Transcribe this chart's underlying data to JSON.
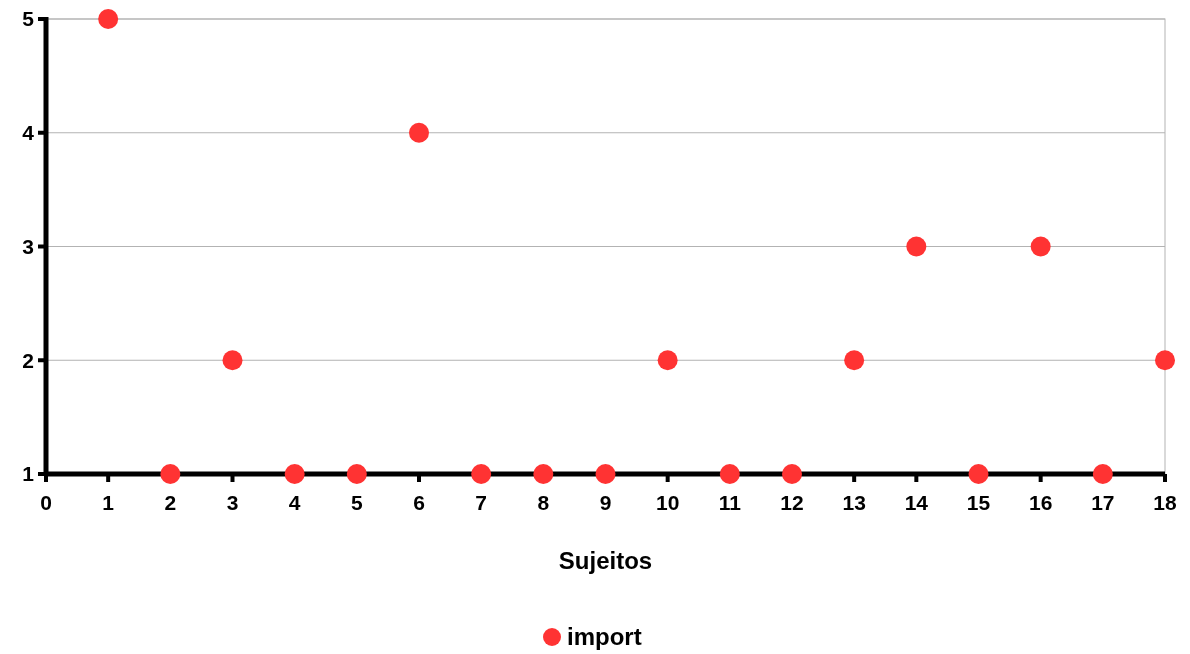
{
  "chart_data": {
    "type": "scatter",
    "xlabel": "Sujeitos",
    "x": [
      1,
      2,
      3,
      4,
      5,
      6,
      7,
      8,
      9,
      10,
      11,
      12,
      13,
      14,
      15,
      16,
      17,
      18
    ],
    "series": [
      {
        "name": "import",
        "color": "#ff3333",
        "values": [
          5,
          1,
          2,
          1,
          1,
          4,
          1,
          1,
          1,
          2,
          1,
          1,
          2,
          3,
          1,
          3,
          1,
          2
        ]
      }
    ],
    "xlim": [
      0,
      18
    ],
    "xticks": [
      0,
      1,
      2,
      3,
      4,
      5,
      6,
      7,
      8,
      9,
      10,
      11,
      12,
      13,
      14,
      15,
      16,
      17,
      18
    ],
    "ylim": [
      1,
      5
    ],
    "yticks": [
      1,
      2,
      3,
      4,
      5
    ],
    "grid": "y",
    "legend": "bottom",
    "marker": "circle"
  }
}
